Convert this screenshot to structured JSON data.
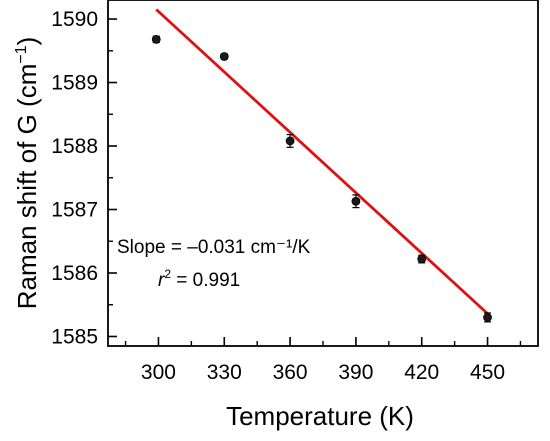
{
  "chart_data": {
    "type": "scatter",
    "xlabel": "Temperature (K)",
    "ylabel_main": "Raman shift of G (cm",
    "ylabel_sup": "−1",
    "ylabel_close": ")",
    "xlim": [
      277,
      473
    ],
    "ylim": [
      1584.85,
      1590.3
    ],
    "x_ticks": [
      300,
      330,
      360,
      390,
      420,
      450
    ],
    "y_ticks": [
      1585,
      1586,
      1587,
      1588,
      1589,
      1590
    ],
    "grid": false,
    "points": [
      {
        "x": 299,
        "y": 1589.68,
        "err": 0.05
      },
      {
        "x": 330,
        "y": 1589.41,
        "err": 0.04
      },
      {
        "x": 360,
        "y": 1588.08,
        "err": 0.1
      },
      {
        "x": 390,
        "y": 1587.13,
        "err": 0.1
      },
      {
        "x": 420,
        "y": 1586.22,
        "err": 0.06
      },
      {
        "x": 450,
        "y": 1585.3,
        "err": 0.07
      }
    ],
    "fit_line": {
      "x0": 299,
      "y0": 1590.15,
      "x1": 450,
      "y1": 1585.36,
      "color": "#e01010"
    },
    "annotation": {
      "slope_text": "Slope = –0.031 cm⁻¹/K",
      "r2_symbol": "r",
      "r2_sup": "2",
      "r2_value": " = 0.991"
    }
  }
}
